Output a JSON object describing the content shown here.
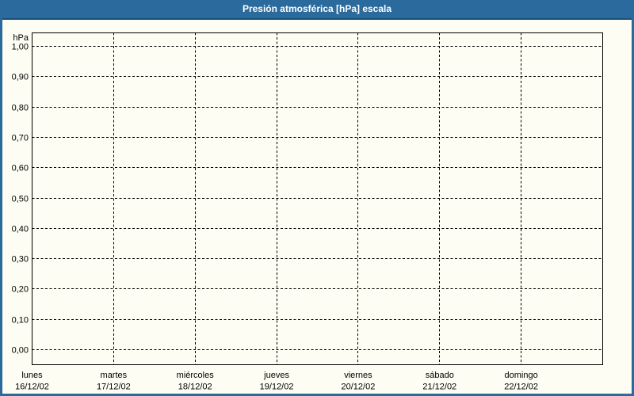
{
  "header": {
    "title": "Presión atmosférica [hPa] escala"
  },
  "colors": {
    "titlebar_bg": "#2b6a9c",
    "titlebar_edge": "#1c4f77",
    "titlebar_text": "#ffffff",
    "window_border": "#2b6a9c",
    "background": "#fdfdf3",
    "axis": "#000000",
    "grid": "#000000",
    "label_text": "#000000"
  },
  "chart_data": {
    "type": "line",
    "title": "Presión atmosférica [hPa] escala",
    "unit_label": "hPa",
    "ylabel": "hPa",
    "xlabel": "",
    "ylim": [
      0,
      1
    ],
    "y_tick_step": 0.1,
    "y_ticks": [
      "1,00",
      "0,90",
      "0,80",
      "0,70",
      "0,60",
      "0,50",
      "0,40",
      "0,30",
      "0,20",
      "0,10",
      "0,00"
    ],
    "x_categories": [
      {
        "day": "lunes",
        "date": "16/12/02"
      },
      {
        "day": "martes",
        "date": "17/12/02"
      },
      {
        "day": "miércoles",
        "date": "18/12/02"
      },
      {
        "day": "jueves",
        "date": "19/12/02"
      },
      {
        "day": "viernes",
        "date": "20/12/02"
      },
      {
        "day": "sábado",
        "date": "21/12/02"
      },
      {
        "day": "domingo",
        "date": "22/12/02"
      }
    ],
    "series": [],
    "grid": "dashed",
    "legend": "none"
  }
}
